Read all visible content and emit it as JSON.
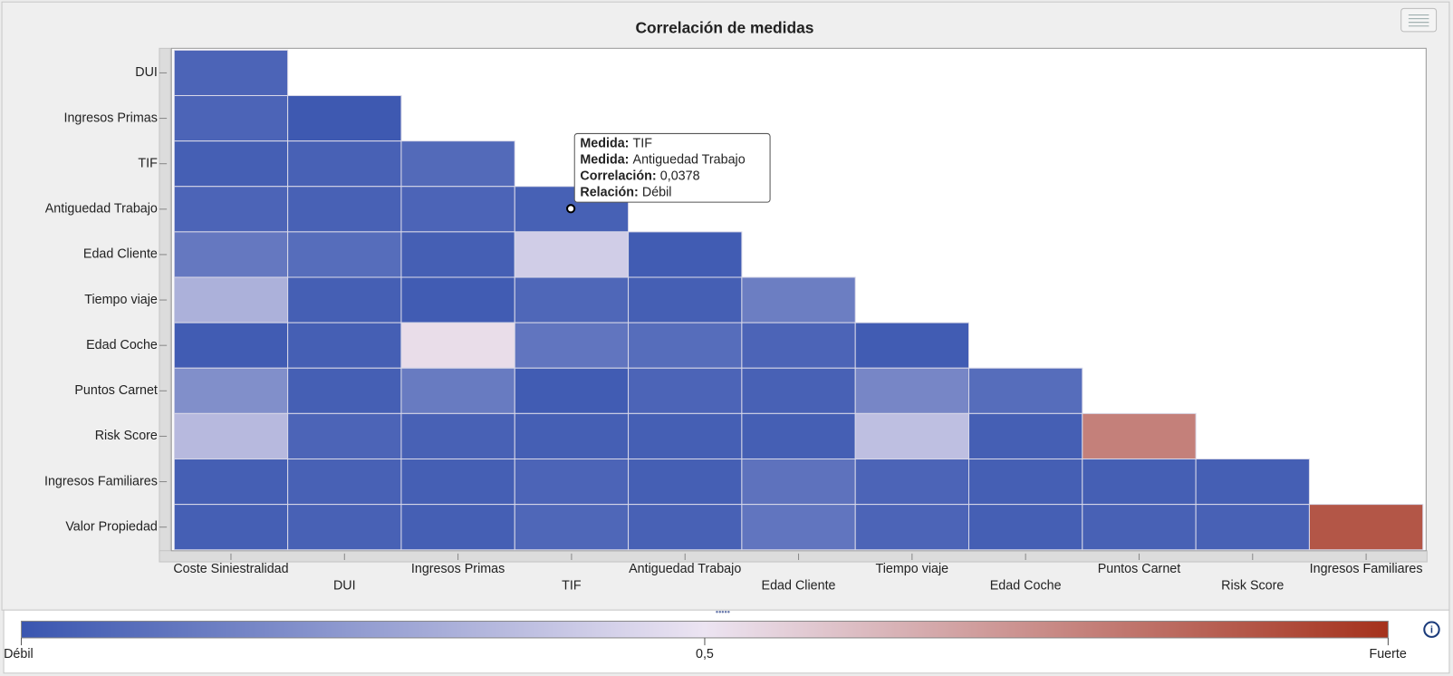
{
  "chart_data": {
    "type": "heatmap",
    "title": "Correlación de medidas",
    "rows": [
      "DUI",
      "Ingresos Primas",
      "TIF",
      "Antiguedad Trabajo",
      "Edad Cliente",
      "Tiempo viaje",
      "Edad Coche",
      "Puntos Carnet",
      "Risk Score",
      "Ingresos Familiares",
      "Valor Propiedad"
    ],
    "columns": [
      "Coste Siniestralidad",
      "DUI",
      "Ingresos Primas",
      "TIF",
      "Antiguedad Trabajo",
      "Edad Cliente",
      "Tiempo viaje",
      "Edad Coche",
      "Puntos Carnet",
      "Risk Score",
      "Ingresos Familiares"
    ],
    "values": [
      [
        0.05,
        null,
        null,
        null,
        null,
        null,
        null,
        null,
        null,
        null,
        null
      ],
      [
        0.05,
        0.01,
        null,
        null,
        null,
        null,
        null,
        null,
        null,
        null,
        null
      ],
      [
        0.03,
        0.04,
        0.07,
        null,
        null,
        null,
        null,
        null,
        null,
        null,
        null
      ],
      [
        0.05,
        0.04,
        0.05,
        0.0378,
        null,
        null,
        null,
        null,
        null,
        null,
        null
      ],
      [
        0.12,
        0.08,
        0.03,
        0.42,
        0.02,
        null,
        null,
        null,
        null,
        null,
        null
      ],
      [
        0.32,
        0.03,
        0.02,
        0.06,
        0.03,
        0.14,
        null,
        null,
        null,
        null,
        null
      ],
      [
        0.02,
        0.03,
        0.52,
        0.11,
        0.08,
        0.05,
        0.02,
        null,
        null,
        null,
        null
      ],
      [
        0.2,
        0.03,
        0.13,
        0.02,
        0.05,
        0.04,
        0.17,
        0.08,
        null,
        null,
        null
      ],
      [
        0.35,
        0.05,
        0.04,
        0.03,
        0.03,
        0.03,
        0.37,
        0.03,
        0.78,
        null,
        null
      ],
      [
        0.03,
        0.04,
        0.03,
        0.05,
        0.03,
        0.1,
        0.05,
        0.03,
        0.03,
        0.03,
        null
      ],
      [
        0.03,
        0.04,
        0.03,
        0.06,
        0.04,
        0.11,
        0.05,
        0.03,
        0.04,
        0.04,
        0.9
      ]
    ],
    "colorscale": {
      "colors": [
        "#3a56b0",
        "#ece4f2",
        "#a5321c"
      ],
      "lim": [
        0,
        1
      ],
      "ticks": [
        {
          "value": 0,
          "label": "Débil"
        },
        {
          "value": 0.5,
          "label": "0,5"
        },
        {
          "value": 1,
          "label": "Fuerte"
        }
      ]
    },
    "tooltip": [
      {
        "key": "Medida:",
        "text": "TIF"
      },
      {
        "key": "Medida:",
        "text": "Antiguedad Trabajo"
      },
      {
        "key": "Correlación:",
        "text": "0,0378"
      },
      {
        "key": "Relación:",
        "text": "Débil"
      }
    ]
  }
}
